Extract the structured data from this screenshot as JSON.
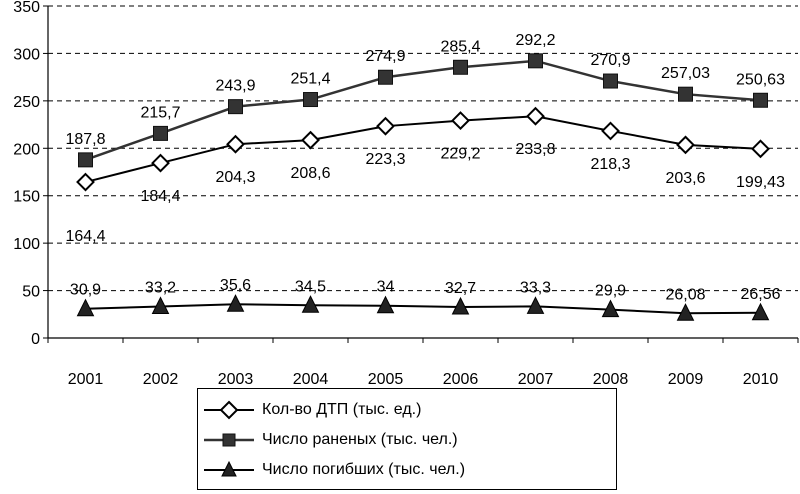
{
  "chart_data": {
    "type": "line",
    "categories": [
      "2001",
      "2002",
      "2003",
      "2004",
      "2005",
      "2006",
      "2007",
      "2008",
      "2009",
      "2010"
    ],
    "ylim": [
      0,
      350
    ],
    "yticks": [
      0,
      50,
      100,
      150,
      200,
      250,
      300,
      350
    ],
    "grid": "horizontal dashed",
    "legend_position": "bottom-center",
    "series": [
      {
        "name": "Кол-во ДТП (тыс. ед.)",
        "marker": "diamond",
        "color": "#000000",
        "values": [
          164.4,
          184.4,
          204.3,
          208.6,
          223.3,
          229.2,
          233.8,
          218.3,
          203.6,
          199.43
        ],
        "labels": [
          "164,4",
          "184,4",
          "204,3",
          "208,6",
          "223,3",
          "229,2",
          "233,8",
          "218,3",
          "203,6",
          "199,43"
        ]
      },
      {
        "name": "Число раненых (тыс. чел.)",
        "marker": "square",
        "color": "#333333",
        "values": [
          187.8,
          215.7,
          243.9,
          251.4,
          274.9,
          285.4,
          292.2,
          270.9,
          257.03,
          250.63
        ],
        "labels": [
          "187,8",
          "215,7",
          "243,9",
          "251,4",
          "274,9",
          "285,4",
          "292,2",
          "270,9",
          "257,03",
          "250,63"
        ]
      },
      {
        "name": "Число погибших (тыс. чел.)",
        "marker": "triangle",
        "color": "#000000",
        "values": [
          30.9,
          33.2,
          35.6,
          34.5,
          34,
          32.7,
          33.3,
          29.9,
          26.08,
          26.56
        ],
        "labels": [
          "30,9",
          "33,2",
          "35,6",
          "34,5",
          "34",
          "32,7",
          "33,3",
          "29,9",
          "26,08",
          "26,56"
        ]
      }
    ]
  }
}
